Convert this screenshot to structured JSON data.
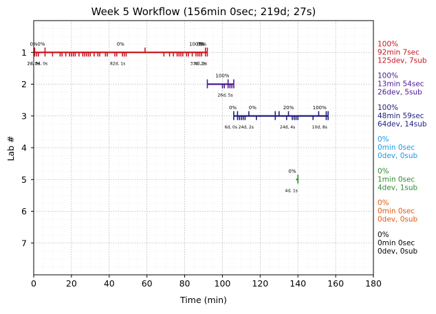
{
  "chart_data": {
    "type": "timeline",
    "title": "Week 5 Workflow (156min 0sec; 219d; 27s)",
    "xlabel": "Time (min)",
    "ylabel": "Lab #",
    "xlim": [
      0,
      180
    ],
    "ylim": [
      0,
      8
    ],
    "x_ticks": [
      "0",
      "20",
      "40",
      "60",
      "80",
      "100",
      "120",
      "140",
      "160",
      "180"
    ],
    "y_ticks": [
      "1",
      "2",
      "3",
      "4",
      "5",
      "6",
      "7"
    ],
    "grid": true,
    "labs": [
      {
        "lab": 1,
        "color": "#c8141e",
        "bar": [
          0,
          92
        ],
        "summary": [
          "100%",
          "92min 7sec",
          "125dev, 7sub"
        ],
        "up_ticks": [
          0.5,
          6,
          59,
          91,
          92
        ],
        "down_ticks": [
          0.5,
          1.5,
          2.5,
          6,
          10,
          14,
          15,
          17,
          19,
          20,
          21,
          22,
          24,
          26,
          27,
          28,
          29,
          30,
          32,
          34,
          35,
          38,
          39,
          43,
          44,
          47,
          48,
          49,
          69,
          72,
          74,
          76,
          77,
          78,
          79,
          81,
          82,
          84,
          86,
          87,
          88,
          89,
          91,
          92
        ],
        "pct_labels": [
          {
            "x": 0,
            "text": "0%"
          },
          {
            "x": 4,
            "text": "0%"
          },
          {
            "x": 46,
            "text": "0%"
          },
          {
            "x": 86,
            "text": "100%"
          },
          {
            "x": 88.5,
            "text": "0%"
          },
          {
            "x": 89.5,
            "text": "0%"
          }
        ],
        "dur_labels": [
          {
            "x": 0,
            "text": "2d, 0s"
          },
          {
            "x": 0,
            "text": "2d, 3s"
          },
          {
            "x": 4,
            "text": "2d, 0s"
          },
          {
            "x": 44.5,
            "text": "82d, 1s"
          },
          {
            "x": 87,
            "text": "33d, 2s"
          },
          {
            "x": 88.5,
            "text": "4d, 2s"
          }
        ]
      },
      {
        "lab": 2,
        "color": "#4b1890",
        "bar": [
          92,
          106
        ],
        "summary": [
          "100%",
          "13min 54sec",
          "26dev, 5sub"
        ],
        "up_ticks": [
          92,
          103,
          106
        ],
        "down_ticks": [
          92,
          100,
          101,
          103,
          104,
          105,
          106
        ],
        "pct_labels": [
          {
            "x": 100,
            "text": "100%"
          }
        ],
        "dur_labels": [
          {
            "x": 101.5,
            "text": "26d, 5s"
          }
        ]
      },
      {
        "lab": 3,
        "color": "#1e1e7d",
        "bar": [
          106,
          156
        ],
        "summary": [
          "100%",
          "48min 59sec",
          "64dev, 14sub"
        ],
        "up_ticks": [
          106,
          108,
          114,
          128,
          130,
          135,
          151,
          155,
          156
        ],
        "down_ticks": [
          106,
          108,
          109,
          110,
          111,
          112,
          118,
          128,
          134,
          137,
          138,
          139,
          140,
          148,
          155,
          156
        ],
        "pct_labels": [
          {
            "x": 105.5,
            "text": "0%"
          },
          {
            "x": 116,
            "text": "0%"
          },
          {
            "x": 135,
            "text": "20%"
          },
          {
            "x": 151.5,
            "text": "100%"
          }
        ],
        "dur_labels": [
          {
            "x": 104.5,
            "text": "6d, 0s"
          },
          {
            "x": 112.5,
            "text": "24d, 2s"
          },
          {
            "x": 134.5,
            "text": "24d, 4s"
          },
          {
            "x": 151.5,
            "text": "10d, 8s"
          }
        ]
      },
      {
        "lab": 4,
        "color": "#1b9ae0",
        "bar": null,
        "summary": [
          "0%",
          "0min 0sec",
          "0dev, 0sub"
        ],
        "up_ticks": [],
        "down_ticks": [],
        "pct_labels": [],
        "dur_labels": []
      },
      {
        "lab": 5,
        "color": "#2e8b2e",
        "bar": [
          139,
          140
        ],
        "summary": [
          "0%",
          "1min 0sec",
          "4dev, 1sub"
        ],
        "up_ticks": [
          140
        ],
        "down_ticks": [
          140
        ],
        "pct_labels": [
          {
            "x": 137,
            "text": "0%"
          }
        ],
        "dur_labels": [
          {
            "x": 136.5,
            "text": "4d, 1s"
          }
        ]
      },
      {
        "lab": 6,
        "color": "#e05a0e",
        "bar": null,
        "summary": [
          "0%",
          "0min 0sec",
          "0dev, 0sub"
        ],
        "up_ticks": [],
        "down_ticks": [],
        "pct_labels": [],
        "dur_labels": []
      },
      {
        "lab": 7,
        "color": "#000000",
        "bar": null,
        "summary": [
          "0%",
          "0min 0sec",
          "0dev, 0sub"
        ],
        "up_ticks": [],
        "down_ticks": [],
        "pct_labels": [],
        "dur_labels": []
      }
    ]
  }
}
